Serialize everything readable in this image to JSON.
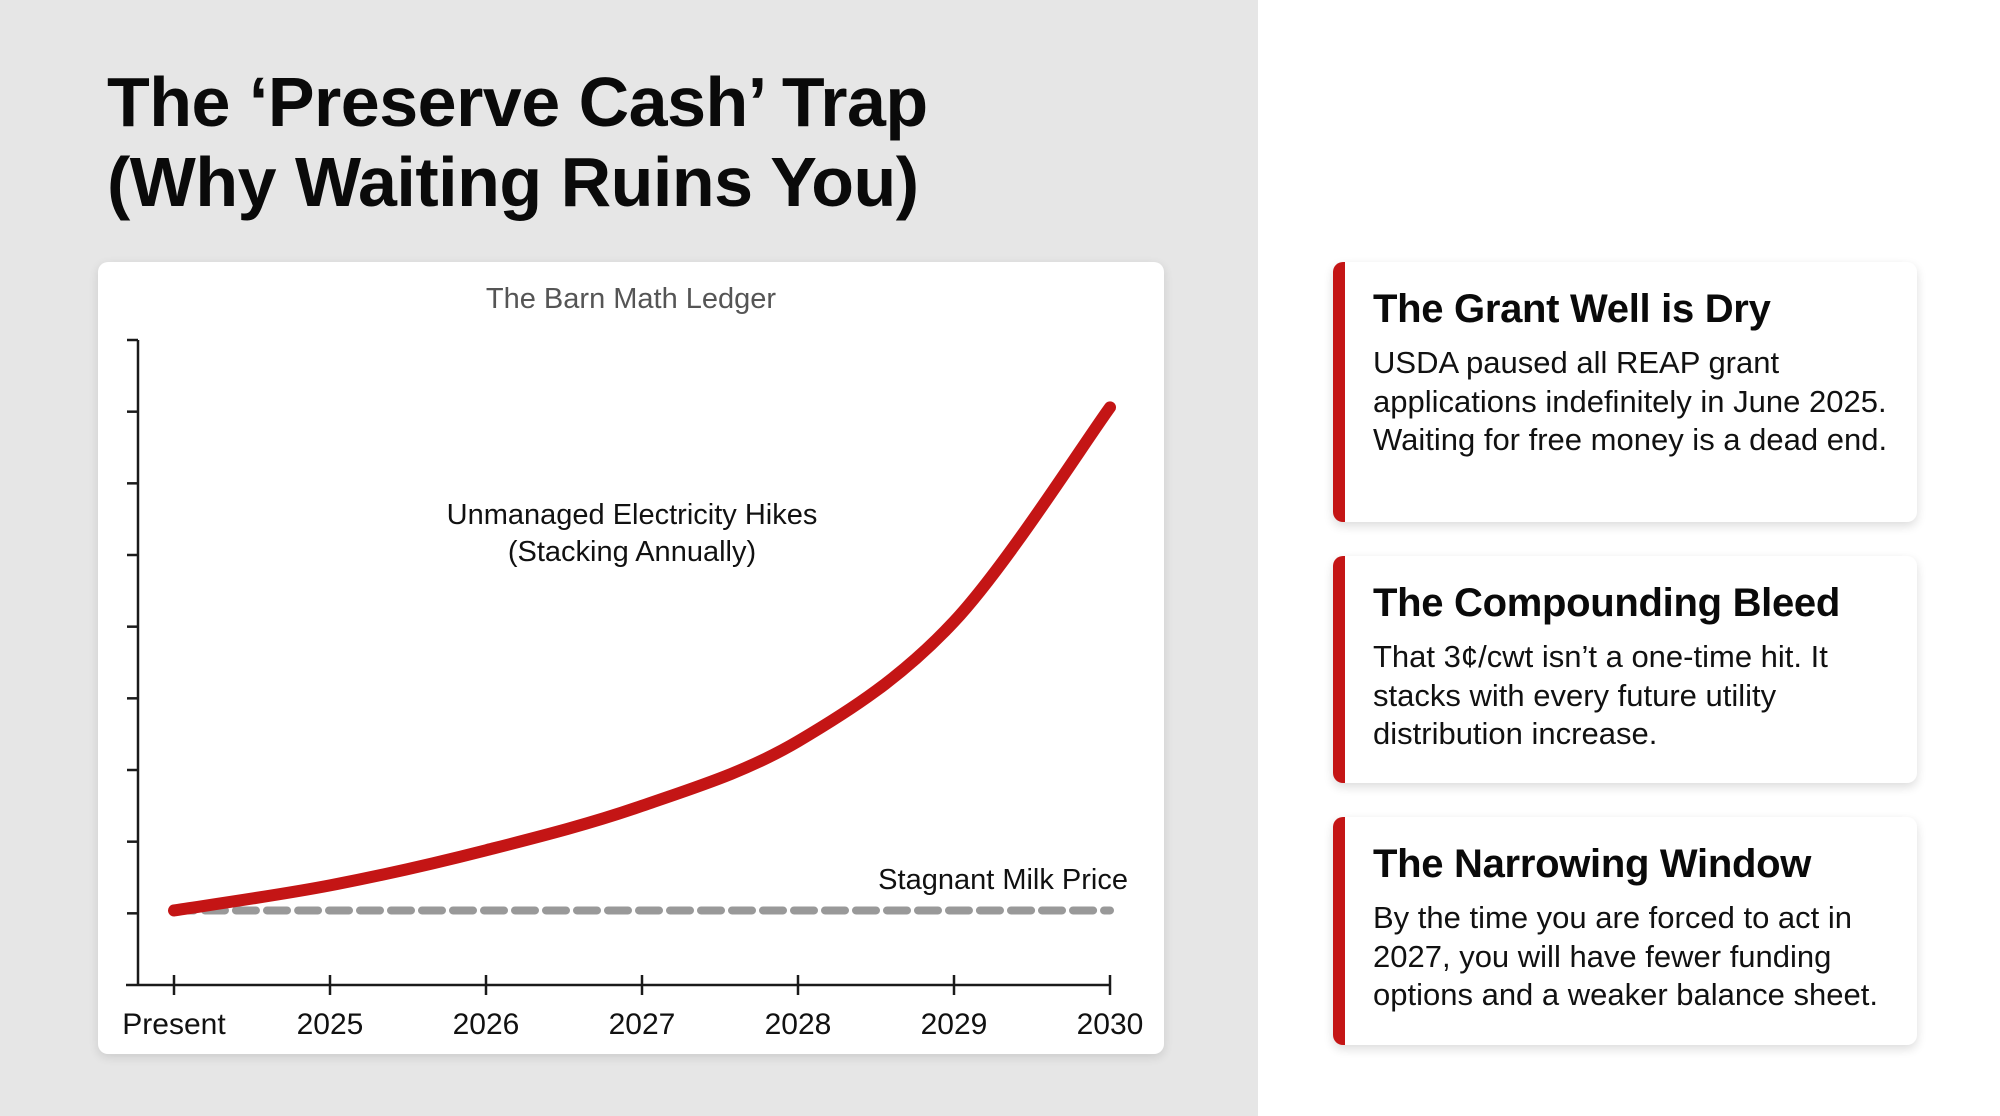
{
  "slide": {
    "title_line1": "The ‘Preserve Cash’ Trap",
    "title_line2": "(Why Waiting Ruins You)"
  },
  "colors": {
    "accent": "#c41515",
    "electricity_line": "#c41515",
    "milk_line": "#999999",
    "left_background": "#e6e6e6"
  },
  "cards": [
    {
      "title": "The Grant Well is Dry",
      "body": "USDA paused all REAP grant applications indefinitely in June 2025. Waiting for free money is a dead end."
    },
    {
      "title": "The Compounding Bleed",
      "body": "That 3¢/cwt isn’t a one-time hit. It stacks with every future utility distribution increase."
    },
    {
      "title": "The Narrowing Window",
      "body": "By the time you are forced to act in 2027, you will have fewer funding options and a weaker balance sheet."
    }
  ],
  "chart_data": {
    "type": "line",
    "title": "The Barn Math Ledger",
    "xlabel": "",
    "ylabel": "",
    "categories": [
      "Present",
      "2025",
      "2026",
      "2027",
      "2028",
      "2029",
      "2030"
    ],
    "ylim": [
      0,
      9
    ],
    "y_ticks_count": 9,
    "y_tick_labels_shown": false,
    "grid": false,
    "series": [
      {
        "name": "Unmanaged Electricity Hikes (Stacking Annually)",
        "label_line1": "Unmanaged Electricity Hikes",
        "label_line2": "(Stacking Annually)",
        "style": "solid",
        "color": "#c41515",
        "values": [
          1.04,
          1.39,
          1.88,
          2.5,
          3.4,
          5.07,
          8.06
        ]
      },
      {
        "name": "Stagnant Milk Price",
        "label_line1": "Stagnant Milk Price",
        "style": "dashed",
        "color": "#999999",
        "values": [
          1.04,
          1.04,
          1.04,
          1.04,
          1.04,
          1.04,
          1.04
        ]
      }
    ]
  }
}
